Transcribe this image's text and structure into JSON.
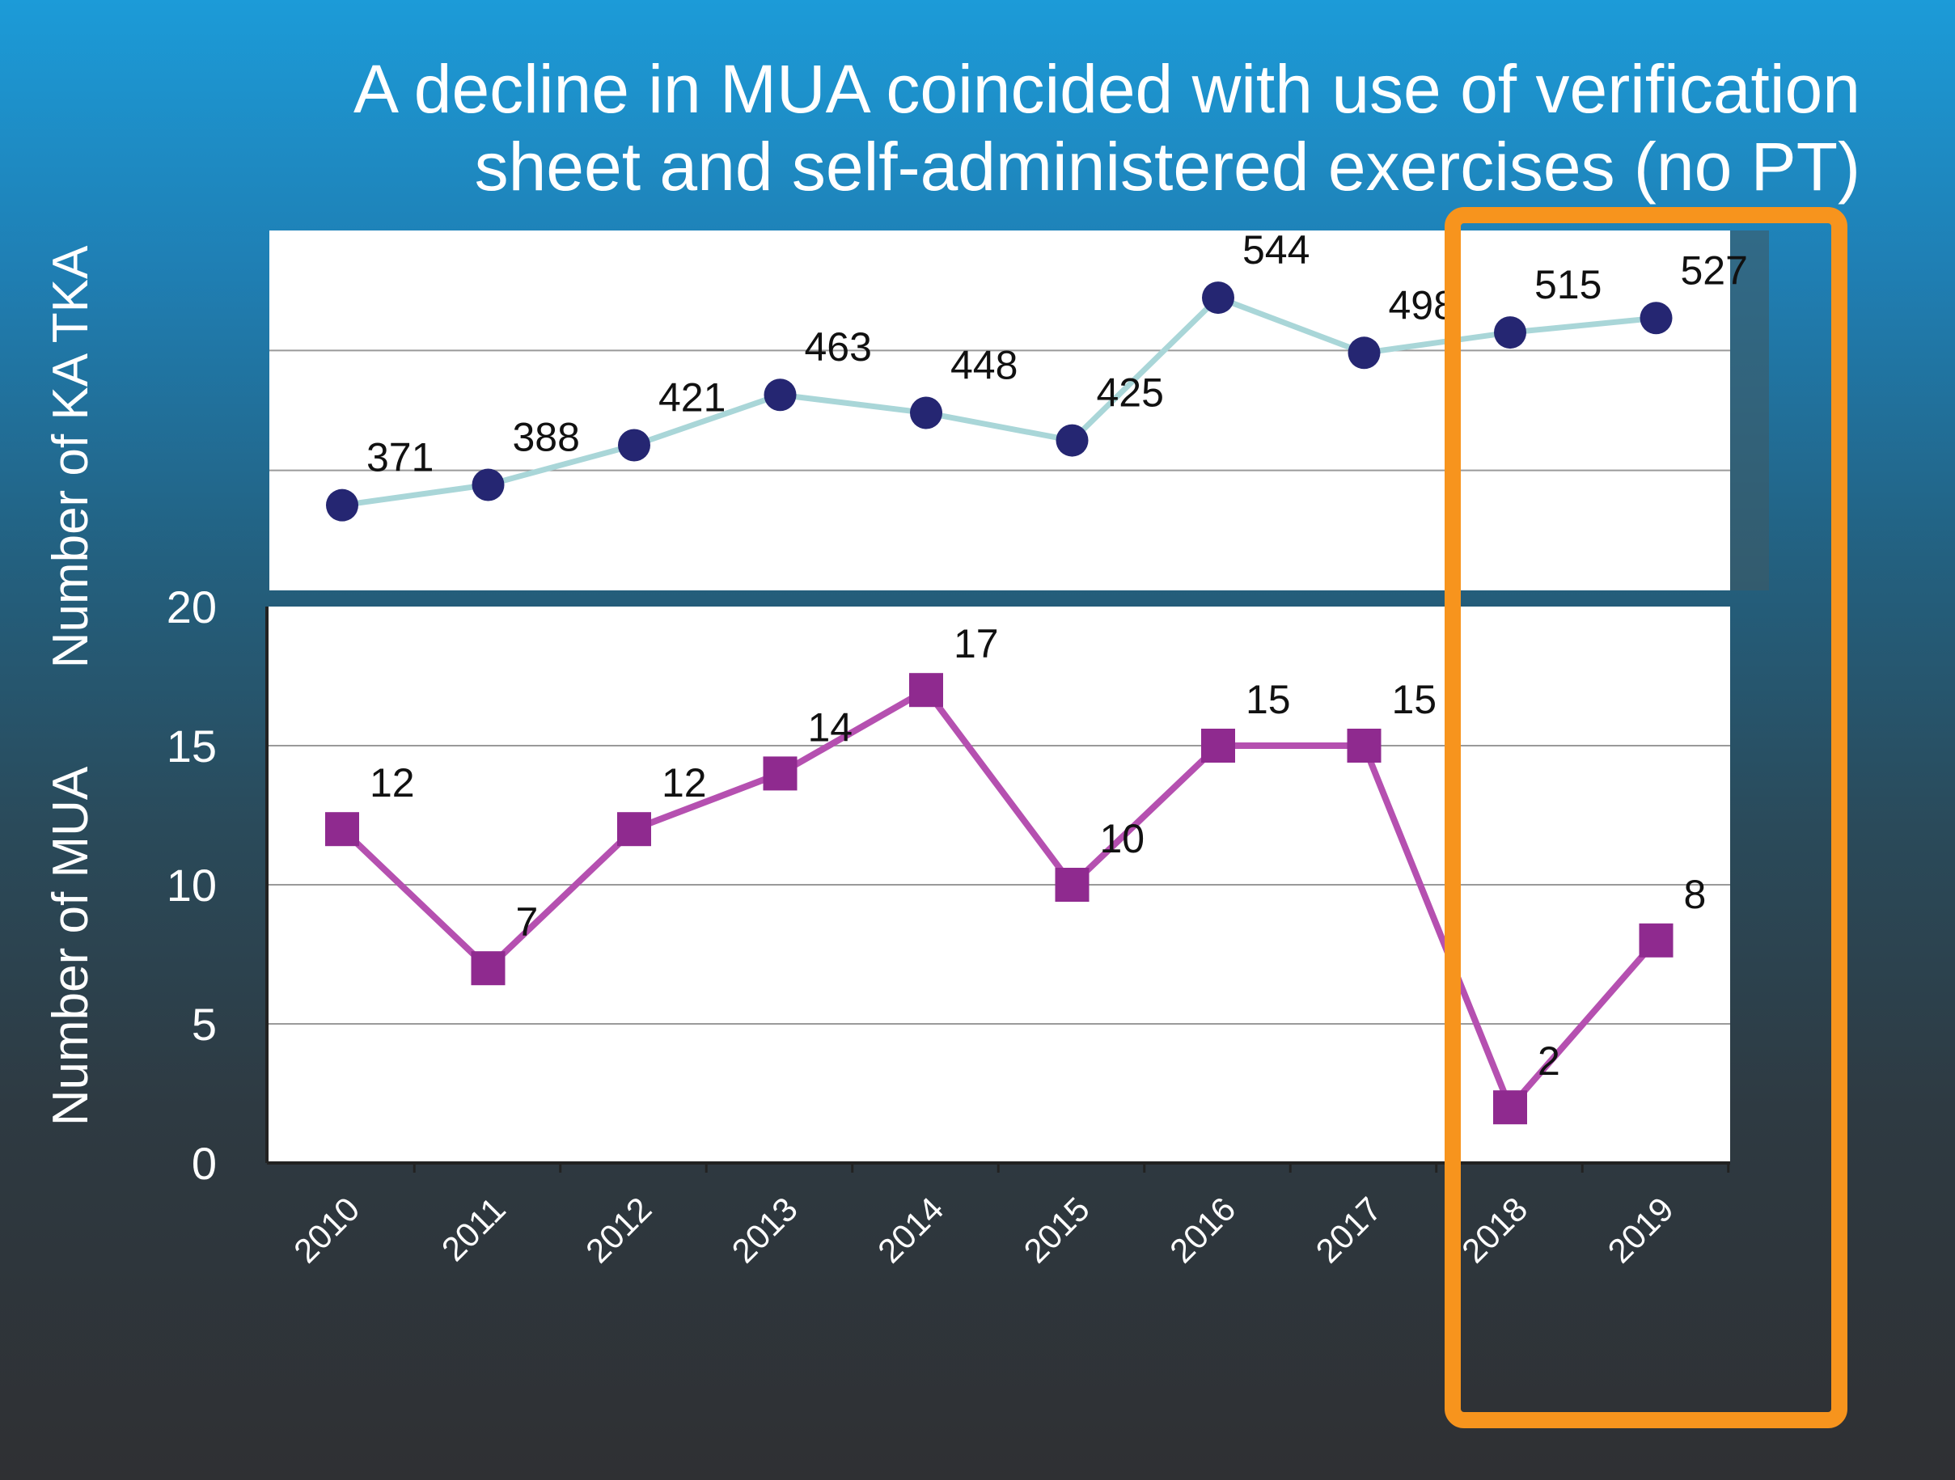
{
  "title_lines": [
    "A decline in MUA coincided with use of verification",
    "sheet and self-administered exercises (no PT)"
  ],
  "colors": {
    "tka_line": "#a9d6d8",
    "tka_marker": "#252672",
    "mua_line": "#b550b0",
    "mua_marker": "#8f2a8f",
    "highlight": "#f7941d"
  },
  "chart_data": [
    {
      "type": "line",
      "title": "",
      "ylabel": "Number of KA TKA",
      "categories": [
        "2010",
        "2011",
        "2012",
        "2013",
        "2014",
        "2015",
        "2016",
        "2017",
        "2018",
        "2019"
      ],
      "series": [
        {
          "name": "Number of KA TKA",
          "values": [
            371,
            388,
            421,
            463,
            448,
            425,
            544,
            498,
            515,
            527
          ]
        }
      ],
      "data_labels": [
        "371",
        "388",
        "421",
        "463",
        "448",
        "425",
        "544",
        "498",
        "515",
        "527"
      ],
      "ylim": [
        300,
        600
      ],
      "grid": true
    },
    {
      "type": "line",
      "title": "",
      "ylabel": "Number of MUA",
      "xlabel": "",
      "categories": [
        "2010",
        "2011",
        "2012",
        "2013",
        "2014",
        "2015",
        "2016",
        "2017",
        "2018",
        "2019"
      ],
      "series": [
        {
          "name": "Number of MUA",
          "values": [
            12,
            7,
            12,
            14,
            17,
            10,
            15,
            15,
            2,
            8
          ]
        }
      ],
      "data_labels": [
        "12",
        "7",
        "12",
        "14",
        "17",
        "10",
        "15",
        "15",
        "2",
        "8"
      ],
      "yticks": [
        "0",
        "5",
        "10",
        "15",
        "20"
      ],
      "ylim": [
        0,
        20
      ],
      "grid": true,
      "highlight": [
        "2018",
        "2019"
      ]
    }
  ]
}
